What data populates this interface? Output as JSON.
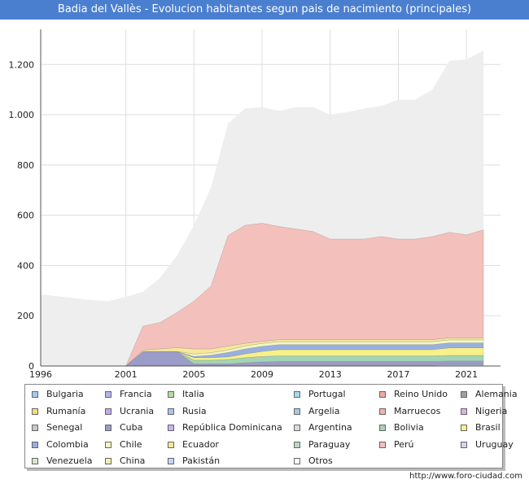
{
  "title": "Badia del Vallès - Evolucion habitantes segun pais de nacimiento (principales)",
  "footer": "http://www.foro-ciudad.com",
  "chart_data": {
    "type": "area",
    "stacked": true,
    "title": "Badia del Vallès - Evolucion habitantes segun pais de nacimiento (principales)",
    "xlabel": "",
    "ylabel": "",
    "xlim": [
      1996,
      2023
    ],
    "ylim": [
      0,
      1340
    ],
    "x_ticks": [
      1996,
      2001,
      2005,
      2009,
      2013,
      2017,
      2021
    ],
    "x_tick_labels": [
      "1996",
      "2001",
      "2005",
      "2009",
      "2013",
      "2017",
      "2021"
    ],
    "y_ticks": [
      0,
      200,
      400,
      600,
      800,
      1000,
      1200
    ],
    "y_tick_labels": [
      "0",
      "200",
      "400",
      "600",
      "800",
      "1.000",
      "1.200"
    ],
    "grid": true,
    "legend_position": "bottom",
    "total_background": {
      "x": [
        1996,
        1998,
        1999,
        2000,
        2001,
        2002,
        2003,
        2004,
        2005,
        2006,
        2007,
        2008,
        2009,
        2010,
        2011,
        2012,
        2013,
        2014,
        2015,
        2016,
        2017,
        2018,
        2019,
        2020,
        2021,
        2022
      ],
      "values": [
        285,
        270,
        262,
        258,
        275,
        295,
        350,
        440,
        560,
        710,
        965,
        1025,
        1030,
        1015,
        1030,
        1030,
        1000,
        1010,
        1025,
        1035,
        1060,
        1060,
        1100,
        1215,
        1220,
        1255
      ],
      "color": "#eeeeee"
    },
    "x": [
      2001,
      2002,
      2003,
      2004,
      2005,
      2006,
      2007,
      2008,
      2009,
      2010,
      2011,
      2012,
      2013,
      2014,
      2015,
      2016,
      2017,
      2018,
      2019,
      2020,
      2021,
      2022
    ],
    "series": [
      {
        "name": "Bulgaria",
        "color": "#a8c8f0",
        "values": [
          0,
          0,
          0,
          0,
          0,
          0,
          0,
          2,
          3,
          3,
          3,
          3,
          3,
          3,
          3,
          3,
          3,
          3,
          3,
          5,
          5,
          5
        ]
      },
      {
        "name": "Francia",
        "color": "#b4b4ee",
        "values": [
          0,
          3,
          3,
          3,
          3,
          3,
          3,
          3,
          3,
          3,
          3,
          3,
          3,
          3,
          3,
          3,
          3,
          3,
          3,
          3,
          3,
          3
        ]
      },
      {
        "name": "Italia",
        "color": "#b4dca4",
        "values": [
          0,
          0,
          0,
          0,
          0,
          0,
          0,
          0,
          0,
          0,
          0,
          0,
          0,
          0,
          0,
          0,
          0,
          0,
          0,
          0,
          0,
          0
        ]
      },
      {
        "name": "Portugal",
        "color": "#a8d8f0",
        "values": [
          0,
          0,
          0,
          0,
          0,
          0,
          0,
          0,
          0,
          0,
          0,
          0,
          0,
          0,
          0,
          0,
          0,
          0,
          0,
          0,
          0,
          0
        ]
      },
      {
        "name": "Reino Unido",
        "color": "#f0a8a0",
        "values": [
          0,
          0,
          0,
          0,
          0,
          0,
          0,
          0,
          0,
          0,
          0,
          0,
          0,
          0,
          0,
          0,
          0,
          0,
          0,
          0,
          0,
          0
        ]
      },
      {
        "name": "Alemania",
        "color": "#a0a0a0",
        "values": [
          0,
          0,
          0,
          0,
          0,
          0,
          0,
          0,
          0,
          0,
          0,
          0,
          0,
          0,
          0,
          0,
          0,
          0,
          0,
          0,
          0,
          0
        ]
      },
      {
        "name": "Rumanía",
        "color": "#f4dc78",
        "values": [
          0,
          0,
          0,
          0,
          0,
          0,
          0,
          0,
          0,
          0,
          0,
          0,
          0,
          0,
          0,
          0,
          0,
          0,
          0,
          0,
          0,
          0
        ]
      },
      {
        "name": "Ucrania",
        "color": "#c4a8f0",
        "values": [
          0,
          0,
          0,
          0,
          0,
          0,
          0,
          0,
          0,
          0,
          0,
          0,
          0,
          0,
          0,
          0,
          0,
          0,
          0,
          0,
          0,
          0
        ]
      },
      {
        "name": "Rusia",
        "color": "#a8c4f0",
        "values": [
          0,
          0,
          0,
          0,
          0,
          0,
          0,
          0,
          0,
          0,
          0,
          0,
          0,
          0,
          0,
          0,
          0,
          0,
          0,
          0,
          0,
          0
        ]
      },
      {
        "name": "Argelia",
        "color": "#a8c8e8",
        "values": [
          0,
          0,
          0,
          0,
          0,
          0,
          0,
          0,
          0,
          0,
          0,
          0,
          0,
          0,
          0,
          0,
          0,
          0,
          0,
          0,
          0,
          0
        ]
      },
      {
        "name": "Marruecos",
        "color": "#f0b4aa",
        "values": [
          0,
          0,
          0,
          0,
          0,
          0,
          0,
          0,
          0,
          0,
          0,
          0,
          0,
          0,
          0,
          0,
          0,
          0,
          0,
          0,
          0,
          0
        ]
      },
      {
        "name": "Nigeria",
        "color": "#e8a8f0",
        "values": [
          0,
          0,
          0,
          0,
          0,
          0,
          0,
          0,
          0,
          0,
          0,
          0,
          0,
          0,
          0,
          0,
          0,
          0,
          0,
          0,
          0,
          0
        ]
      },
      {
        "name": "Senegal",
        "color": "#c8c8c8",
        "values": [
          0,
          0,
          0,
          0,
          0,
          0,
          0,
          0,
          0,
          0,
          0,
          0,
          0,
          0,
          0,
          0,
          0,
          0,
          0,
          0,
          0,
          0
        ]
      },
      {
        "name": "Cuba",
        "color": "#9c9cc8",
        "values": [
          0,
          55,
          55,
          55,
          5,
          5,
          5,
          8,
          10,
          12,
          12,
          12,
          12,
          12,
          12,
          12,
          12,
          12,
          12,
          12,
          12,
          12
        ]
      },
      {
        "name": "República Dominicana",
        "color": "#c8b4f0",
        "values": [
          0,
          0,
          0,
          0,
          0,
          0,
          0,
          0,
          0,
          0,
          0,
          0,
          0,
          0,
          0,
          0,
          0,
          0,
          0,
          0,
          0,
          0
        ]
      },
      {
        "name": "Argentina",
        "color": "#dcdcdc",
        "values": [
          0,
          0,
          0,
          0,
          0,
          0,
          0,
          0,
          0,
          0,
          0,
          0,
          0,
          0,
          0,
          0,
          0,
          0,
          0,
          0,
          0,
          0
        ]
      },
      {
        "name": "Bolivia",
        "color": "#a4d4b4",
        "values": [
          0,
          0,
          0,
          0,
          15,
          15,
          18,
          20,
          22,
          22,
          22,
          22,
          22,
          22,
          22,
          22,
          22,
          22,
          22,
          22,
          22,
          22
        ]
      },
      {
        "name": "Brasil",
        "color": "#f8f088",
        "values": [
          0,
          0,
          0,
          0,
          10,
          10,
          10,
          15,
          20,
          25,
          25,
          25,
          25,
          25,
          25,
          25,
          25,
          25,
          25,
          30,
          30,
          30
        ]
      },
      {
        "name": "Colombia",
        "color": "#98b0e0",
        "values": [
          0,
          0,
          0,
          0,
          5,
          10,
          18,
          20,
          20,
          20,
          20,
          20,
          20,
          20,
          20,
          20,
          20,
          20,
          20,
          20,
          20,
          20
        ]
      },
      {
        "name": "Chile",
        "color": "#f4f4c4",
        "values": [
          0,
          0,
          0,
          0,
          10,
          10,
          10,
          12,
          12,
          12,
          12,
          12,
          12,
          12,
          12,
          12,
          12,
          12,
          12,
          12,
          12,
          12
        ]
      },
      {
        "name": "Ecuador",
        "color": "#f8e898",
        "values": [
          0,
          5,
          10,
          15,
          20,
          15,
          15,
          10,
          8,
          8,
          8,
          8,
          8,
          8,
          8,
          8,
          8,
          8,
          8,
          8,
          8,
          8
        ]
      },
      {
        "name": "Paraguay",
        "color": "#bcd8c4",
        "values": [
          0,
          0,
          0,
          0,
          0,
          0,
          0,
          0,
          0,
          0,
          0,
          0,
          0,
          0,
          0,
          0,
          0,
          0,
          0,
          0,
          0,
          0
        ]
      },
      {
        "name": "Perú",
        "color": "#f4c0bc",
        "values": [
          0,
          95,
          105,
          140,
          190,
          250,
          440,
          470,
          470,
          450,
          440,
          430,
          400,
          400,
          400,
          410,
          400,
          400,
          410,
          420,
          410,
          430
        ]
      },
      {
        "name": "Uruguay",
        "color": "#ddd0e8",
        "values": [
          0,
          0,
          0,
          0,
          0,
          0,
          0,
          0,
          0,
          0,
          0,
          0,
          0,
          0,
          0,
          0,
          0,
          0,
          0,
          0,
          0,
          0
        ]
      },
      {
        "name": "Venezuela",
        "color": "#d8e4c8",
        "values": [
          0,
          0,
          0,
          0,
          0,
          0,
          0,
          0,
          0,
          0,
          0,
          0,
          0,
          0,
          0,
          0,
          0,
          0,
          0,
          0,
          0,
          0
        ]
      },
      {
        "name": "China",
        "color": "#eef0b4",
        "values": [
          0,
          0,
          0,
          0,
          0,
          0,
          0,
          0,
          0,
          0,
          0,
          0,
          0,
          0,
          0,
          0,
          0,
          0,
          0,
          0,
          0,
          0
        ]
      },
      {
        "name": "Pakistán",
        "color": "#c4d4f4",
        "values": [
          0,
          0,
          0,
          0,
          0,
          0,
          0,
          0,
          0,
          0,
          0,
          0,
          0,
          0,
          0,
          0,
          0,
          0,
          0,
          0,
          0,
          0
        ]
      },
      {
        "name": "Otros",
        "color": "#ffffff",
        "values": [
          0,
          0,
          0,
          0,
          0,
          0,
          0,
          0,
          0,
          0,
          0,
          0,
          0,
          0,
          0,
          0,
          0,
          0,
          0,
          0,
          0,
          0
        ]
      }
    ]
  }
}
